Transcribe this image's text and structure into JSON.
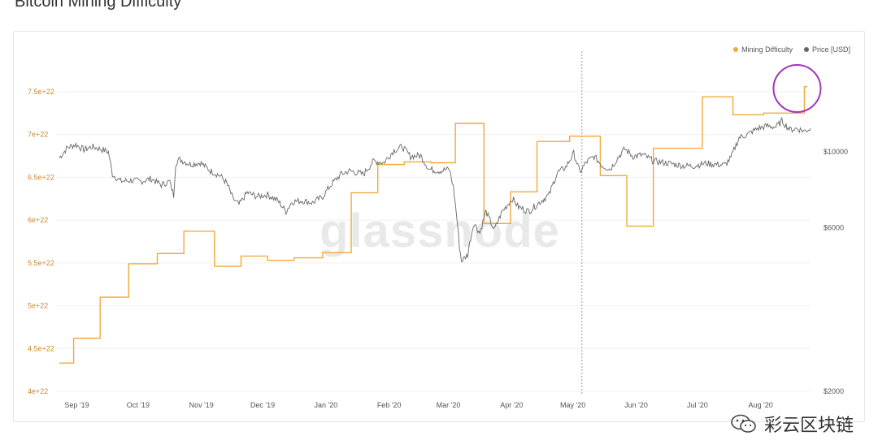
{
  "page": {
    "title": "Bitcoin Mining Difficulty"
  },
  "legend": {
    "items": [
      {
        "label": "Mining Difficulty",
        "color": "#f2a93b"
      },
      {
        "label": "Price [USD]",
        "color": "#666666"
      }
    ]
  },
  "watermark": {
    "text": "glassnode",
    "footer_text": "彩云区块链",
    "footer_icon": "wechat-icon"
  },
  "chart_data": {
    "type": "line",
    "title": "Bitcoin Mining Difficulty",
    "x_ticks": [
      "Sep '19",
      "Oct '19",
      "Nov '19",
      "Dec '19",
      "Jan '20",
      "Feb '20",
      "Mar '20",
      "Apr '20",
      "May '20",
      "Jun '20",
      "Jul '20",
      "Aug '20"
    ],
    "x_range": [
      "2019-08-29",
      "2020-08-31"
    ],
    "y_left": {
      "label": "Mining Difficulty",
      "ticks": [
        "4e+22",
        "4.5e+22",
        "5e+22",
        "5.5e+22",
        "6e+22",
        "6.5e+22",
        "7e+22",
        "7.5e+22"
      ],
      "range": [
        4e+22,
        7.5e+22
      ],
      "color": "#c98a2b"
    },
    "y_right": {
      "label": "Price [USD]",
      "scale": "log",
      "ticks": [
        "$2000",
        "$6000",
        "$10000"
      ]
    },
    "marker_date": "2020-05-11",
    "highlight_circle_date": "2020-08-28",
    "series": [
      {
        "name": "Mining Difficulty",
        "color": "#f2a93b",
        "shape": "step",
        "points": [
          [
            "2019-08-29",
            4.33e+22
          ],
          [
            "2019-09-05",
            4.62e+22
          ],
          [
            "2019-09-18",
            5.1e+22
          ],
          [
            "2019-10-02",
            5.49e+22
          ],
          [
            "2019-10-16",
            5.61e+22
          ],
          [
            "2019-10-29",
            5.87e+22
          ],
          [
            "2019-11-13",
            5.46e+22
          ],
          [
            "2019-11-26",
            5.58e+22
          ],
          [
            "2019-12-09",
            5.53e+22
          ],
          [
            "2019-12-22",
            5.56e+22
          ],
          [
            "2020-01-05",
            5.62e+22
          ],
          [
            "2020-01-19",
            6.32e+22
          ],
          [
            "2020-02-01",
            6.65e+22
          ],
          [
            "2020-02-14",
            6.68e+22
          ],
          [
            "2020-02-27",
            6.67e+22
          ],
          [
            "2020-03-10",
            7.13e+22
          ],
          [
            "2020-03-24",
            5.96e+22
          ],
          [
            "2020-04-06",
            6.33e+22
          ],
          [
            "2020-04-19",
            6.92e+22
          ],
          [
            "2020-05-05",
            6.98e+22
          ],
          [
            "2020-05-20",
            6.52e+22
          ],
          [
            "2020-06-02",
            5.93e+22
          ],
          [
            "2020-06-15",
            6.84e+22
          ],
          [
            "2020-07-09",
            7.44e+22
          ],
          [
            "2020-07-24",
            7.23e+22
          ],
          [
            "2020-08-08",
            7.25e+22
          ],
          [
            "2020-08-28",
            7.56e+22
          ]
        ]
      },
      {
        "name": "Price [USD]",
        "color": "#666666",
        "shape": "line",
        "points": [
          [
            "2019-08-29",
            9600
          ],
          [
            "2019-09-02",
            10300
          ],
          [
            "2019-09-06",
            10500
          ],
          [
            "2019-09-10",
            10150
          ],
          [
            "2019-09-14",
            10350
          ],
          [
            "2019-09-18",
            10200
          ],
          [
            "2019-09-22",
            10000
          ],
          [
            "2019-09-24",
            8600
          ],
          [
            "2019-09-28",
            8200
          ],
          [
            "2019-10-03",
            8250
          ],
          [
            "2019-10-08",
            8200
          ],
          [
            "2019-10-13",
            8350
          ],
          [
            "2019-10-18",
            8000
          ],
          [
            "2019-10-22",
            8200
          ],
          [
            "2019-10-24",
            7450
          ],
          [
            "2019-10-25",
            9250
          ],
          [
            "2019-10-27",
            9500
          ],
          [
            "2019-11-01",
            9200
          ],
          [
            "2019-11-06",
            9300
          ],
          [
            "2019-11-11",
            8800
          ],
          [
            "2019-11-16",
            8500
          ],
          [
            "2019-11-19",
            8100
          ],
          [
            "2019-11-22",
            7300
          ],
          [
            "2019-11-25",
            7000
          ],
          [
            "2019-11-29",
            7600
          ],
          [
            "2019-12-04",
            7400
          ],
          [
            "2019-12-09",
            7500
          ],
          [
            "2019-12-14",
            7200
          ],
          [
            "2019-12-18",
            6700
          ],
          [
            "2019-12-21",
            7150
          ],
          [
            "2019-12-26",
            7200
          ],
          [
            "2019-12-31",
            7100
          ],
          [
            "2020-01-05",
            7400
          ],
          [
            "2020-01-09",
            8000
          ],
          [
            "2020-01-14",
            8600
          ],
          [
            "2020-01-18",
            8800
          ],
          [
            "2020-01-25",
            8600
          ],
          [
            "2020-01-30",
            9400
          ],
          [
            "2020-02-04",
            9300
          ],
          [
            "2020-02-09",
            10100
          ],
          [
            "2020-02-13",
            10350
          ],
          [
            "2020-02-17",
            9700
          ],
          [
            "2020-02-22",
            9750
          ],
          [
            "2020-02-26",
            8900
          ],
          [
            "2020-03-02",
            8800
          ],
          [
            "2020-03-07",
            8900
          ],
          [
            "2020-03-09",
            7900
          ],
          [
            "2020-03-12",
            5300
          ],
          [
            "2020-03-13",
            4800
          ],
          [
            "2020-03-16",
            5000
          ],
          [
            "2020-03-19",
            6200
          ],
          [
            "2020-03-22",
            5800
          ],
          [
            "2020-03-25",
            6700
          ],
          [
            "2020-03-29",
            5900
          ],
          [
            "2020-04-02",
            6700
          ],
          [
            "2020-04-07",
            7300
          ],
          [
            "2020-04-10",
            6900
          ],
          [
            "2020-04-15",
            6700
          ],
          [
            "2020-04-20",
            7100
          ],
          [
            "2020-04-25",
            7500
          ],
          [
            "2020-04-29",
            8700
          ],
          [
            "2020-05-03",
            9000
          ],
          [
            "2020-05-07",
            9900
          ],
          [
            "2020-05-10",
            8700
          ],
          [
            "2020-05-13",
            9300
          ],
          [
            "2020-05-17",
            9700
          ],
          [
            "2020-05-21",
            9100
          ],
          [
            "2020-05-25",
            8900
          ],
          [
            "2020-05-28",
            9500
          ],
          [
            "2020-06-01",
            10200
          ],
          [
            "2020-06-05",
            9700
          ],
          [
            "2020-06-10",
            9800
          ],
          [
            "2020-06-15",
            9400
          ],
          [
            "2020-06-20",
            9300
          ],
          [
            "2020-06-25",
            9200
          ],
          [
            "2020-06-30",
            9100
          ],
          [
            "2020-07-05",
            9100
          ],
          [
            "2020-07-10",
            9250
          ],
          [
            "2020-07-15",
            9200
          ],
          [
            "2020-07-20",
            9150
          ],
          [
            "2020-07-23",
            9600
          ],
          [
            "2020-07-27",
            11000
          ],
          [
            "2020-08-01",
            11300
          ],
          [
            "2020-08-05",
            11700
          ],
          [
            "2020-08-10",
            11900
          ],
          [
            "2020-08-14",
            11800
          ],
          [
            "2020-08-17",
            12300
          ],
          [
            "2020-08-21",
            11600
          ],
          [
            "2020-08-24",
            11700
          ],
          [
            "2020-08-28",
            11500
          ],
          [
            "2020-08-31",
            11700
          ]
        ]
      }
    ]
  }
}
